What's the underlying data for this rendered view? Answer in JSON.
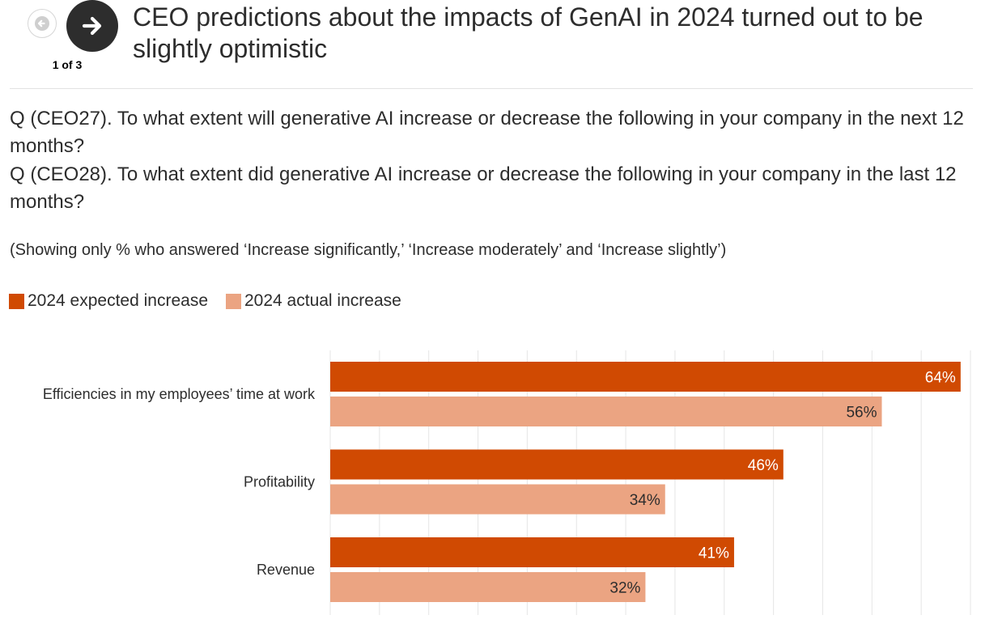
{
  "nav": {
    "counter": "1 of 3",
    "prev_icon": "arrow-left-icon",
    "next_icon": "arrow-right-icon"
  },
  "header": {
    "title": "CEO predictions about the impacts of GenAI in 2024 turned out to be slightly optimistic"
  },
  "questions": {
    "q1": "Q (CEO27). To what extent will generative AI increase or decrease the following in your company in the next 12 months?",
    "q2": "Q (CEO28). To what extent did generative AI increase or decrease the following in your company in the last 12 months?",
    "note": "(Showing only % who answered ‘Increase significantly,’ ‘Increase moderately’ and ‘Increase slightly’)"
  },
  "colors": {
    "expected": "#d04a02",
    "actual": "#eba482",
    "grid": "#e6e6e6",
    "text": "#2d2d2d"
  },
  "chart_data": {
    "type": "bar",
    "orientation": "horizontal",
    "categories": [
      "Efficiencies in my employees’ time at work",
      "Profitability",
      "Revenue"
    ],
    "series": [
      {
        "name": "2024 expected increase",
        "values": [
          64,
          46,
          41
        ],
        "labels": [
          "64%",
          "46%",
          "41%"
        ]
      },
      {
        "name": "2024 actual increase",
        "values": [
          56,
          34,
          32
        ],
        "labels": [
          "56%",
          "34%",
          "32%"
        ]
      }
    ],
    "xlim": [
      0,
      65
    ],
    "grid": true,
    "legend_position": "top-left",
    "title": "CEO predictions about the impacts of GenAI in 2024 turned out to be slightly optimistic",
    "xlabel": "",
    "ylabel": ""
  }
}
